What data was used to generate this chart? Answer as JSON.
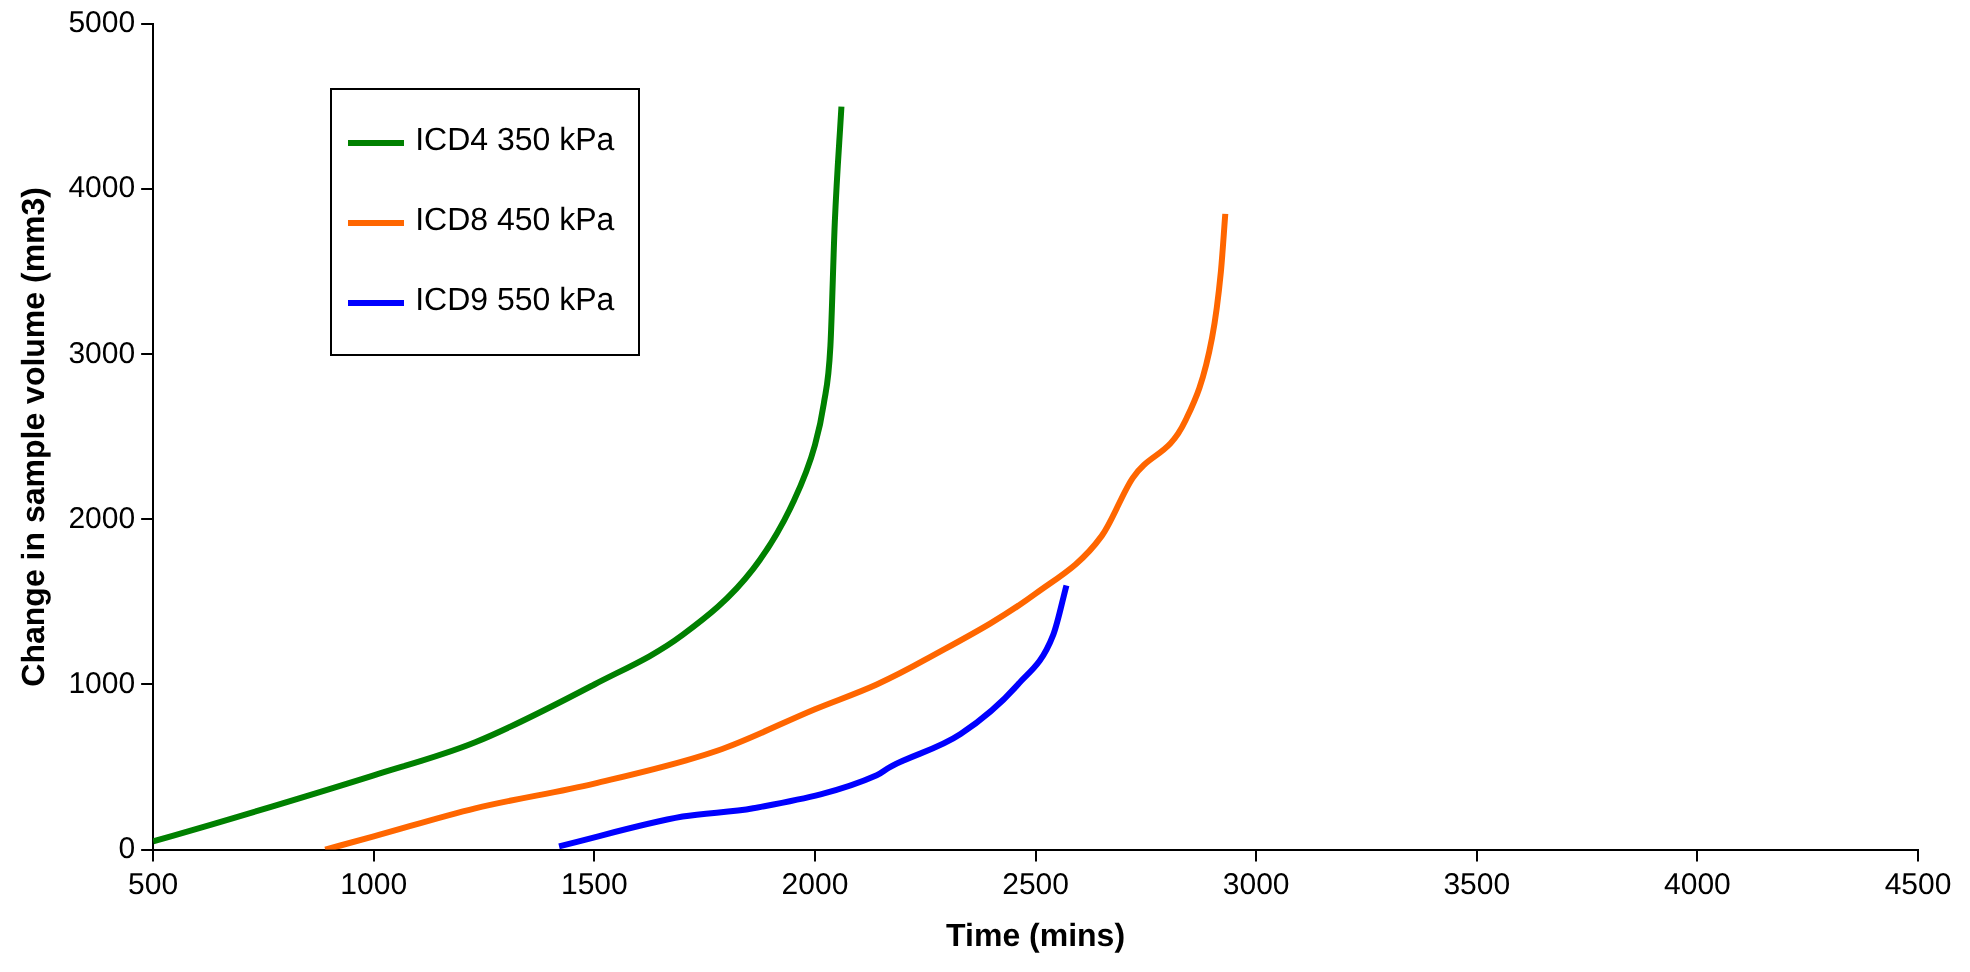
{
  "chart_data": {
    "type": "line",
    "xlabel": "Time (mins)",
    "ylabel": "Change in sample volume (mm3)",
    "xlim": [
      500,
      4500
    ],
    "xticks": [
      500,
      1000,
      1500,
      2000,
      2500,
      3000,
      3500,
      4000,
      4500
    ],
    "ylim": [
      0,
      5000
    ],
    "yticks": [
      0,
      1000,
      2000,
      3000,
      4000,
      5000
    ],
    "grid": false,
    "legend": "top left",
    "marker": "none",
    "series": [
      {
        "name": "ICD4 350 kPa",
        "color": "#008000",
        "x": [
          500,
          630,
          1000,
          1230,
          1500,
          1700,
          1860,
          1950,
          2000,
          2020,
          2035,
          2045,
          2060
        ],
        "values": [
          50,
          150,
          450,
          650,
          1000,
          1300,
          1700,
          2100,
          2450,
          2700,
          3050,
          3800,
          4500
        ]
      },
      {
        "name": "ICD8 450 kPa",
        "color": "#ff6600",
        "x": [
          890,
          1000,
          1230,
          1500,
          1780,
          2000,
          2140,
          2250,
          2500,
          2650,
          2720,
          2840,
          2900,
          2920,
          2930
        ],
        "values": [
          0,
          80,
          250,
          400,
          600,
          850,
          1000,
          1150,
          1550,
          1900,
          2250,
          2600,
          3100,
          3500,
          3850
        ]
      },
      {
        "name": "ICD9 550 kPa",
        "color": "#0000ff",
        "x": [
          1420,
          1700,
          1860,
          2140,
          2170,
          2330,
          2460,
          2540,
          2570
        ],
        "values": [
          20,
          200,
          250,
          450,
          500,
          700,
          1000,
          1300,
          1600
        ]
      }
    ]
  }
}
